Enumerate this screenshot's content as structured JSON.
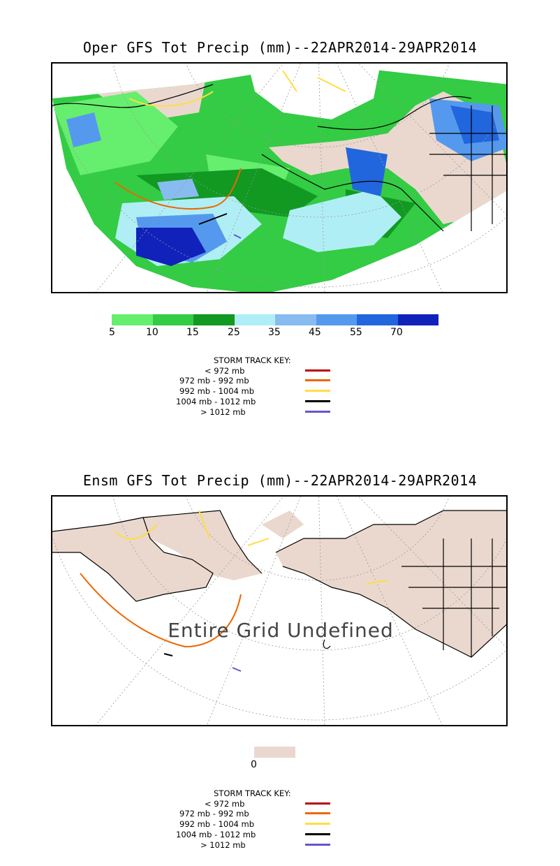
{
  "top": {
    "title": "Oper GFS Tot Precip (mm)--22APR2014-29APR2014",
    "colorbar": {
      "colors": [
        "#66ee6e",
        "#33cc44",
        "#119922",
        "#b0eef5",
        "#88bbf0",
        "#5599ee",
        "#2266dd",
        "#1122bb"
      ],
      "ticks": [
        "5",
        "10",
        "15",
        "25",
        "35",
        "45",
        "55",
        "70"
      ]
    }
  },
  "bottom": {
    "title": "Ensm GFS Tot Precip (mm)--22APR2014-29APR2014",
    "undefined_label": "Entire Grid Undefined",
    "colorbar": {
      "colors": [
        "#ead8ce"
      ],
      "ticks": [
        "0"
      ]
    }
  },
  "storm_key": {
    "header": "STORM TRACK KEY:",
    "rows": [
      {
        "label": "< 972 mb",
        "color": "#bb0000"
      },
      {
        "label": "972 mb - 992 mb",
        "color": "#ee6600"
      },
      {
        "label": "992 mb - 1004 mb",
        "color": "#ffdd44"
      },
      {
        "label": "1004 mb - 1012 mb",
        "color": "#000000"
      },
      {
        "label": "> 1012 mb",
        "color": "#6655cc"
      }
    ]
  }
}
